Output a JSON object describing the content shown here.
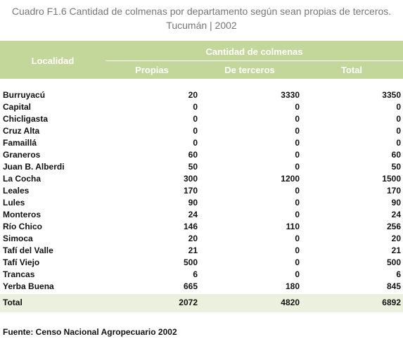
{
  "title": "Cuadro F1.6 Cantidad de colmenas por departamento según sean propias de terceros.",
  "subtitle": "Tucumán | 2002",
  "table": {
    "header": {
      "locality": "Localidad",
      "group": "Cantidad de colmenas",
      "columns": [
        "Propias",
        "De terceros",
        "Total"
      ]
    },
    "rows": [
      [
        "Burruyacú",
        20,
        3330,
        3350
      ],
      [
        "Capital",
        0,
        0,
        0
      ],
      [
        "Chicligasta",
        0,
        0,
        0
      ],
      [
        "Cruz Alta",
        0,
        0,
        0
      ],
      [
        "Famaillá",
        0,
        0,
        0
      ],
      [
        "Graneros",
        60,
        0,
        60
      ],
      [
        "Juan B. Alberdi",
        50,
        0,
        50
      ],
      [
        "La Cocha",
        300,
        1200,
        1500
      ],
      [
        "Leales",
        170,
        0,
        170
      ],
      [
        "Lules",
        90,
        0,
        90
      ],
      [
        "Monteros",
        24,
        0,
        24
      ],
      [
        "Río Chico",
        146,
        110,
        256
      ],
      [
        "Simoca",
        20,
        0,
        20
      ],
      [
        "Tafí del Valle",
        21,
        0,
        21
      ],
      [
        "Tafí Viejo",
        500,
        0,
        500
      ],
      [
        "Trancas",
        6,
        0,
        6
      ],
      [
        "Yerba Buena",
        665,
        180,
        845
      ]
    ],
    "total": [
      "Total",
      2072,
      4820,
      6892
    ]
  },
  "source": "Fuente: Censo Nacional Agropecuario 2002"
}
